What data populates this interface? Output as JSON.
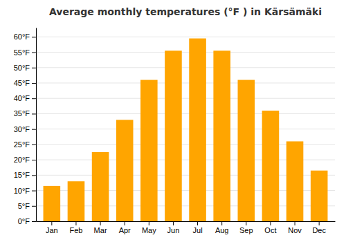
{
  "chart_data": {
    "type": "bar",
    "title": "Average monthly temperatures (°F ) in Kärsämäki",
    "categories": [
      "Jan",
      "Feb",
      "Mar",
      "Apr",
      "May",
      "Jun",
      "Jul",
      "Aug",
      "Sep",
      "Oct",
      "Nov",
      "Dec"
    ],
    "values": [
      11.5,
      13.0,
      22.5,
      33.0,
      46.0,
      55.5,
      59.5,
      55.5,
      46.0,
      36.0,
      26.0,
      16.5
    ],
    "color": "#FFA500",
    "ylim": [
      0,
      63
    ],
    "yticks": [
      {
        "value": 0,
        "label": "0°F"
      },
      {
        "value": 5,
        "label": "5°F"
      },
      {
        "value": 10,
        "label": "10°F"
      },
      {
        "value": 15,
        "label": "15°F"
      },
      {
        "value": 20,
        "label": "20°F"
      },
      {
        "value": 25,
        "label": "25°F"
      },
      {
        "value": 30,
        "label": "30°F"
      },
      {
        "value": 35,
        "label": "35°F"
      },
      {
        "value": 40,
        "label": "40°F"
      },
      {
        "value": 45,
        "label": "45°F"
      },
      {
        "value": 50,
        "label": "50°F"
      },
      {
        "value": 55,
        "label": "55°F"
      },
      {
        "value": 60,
        "label": "60°F"
      }
    ],
    "grid": true
  }
}
